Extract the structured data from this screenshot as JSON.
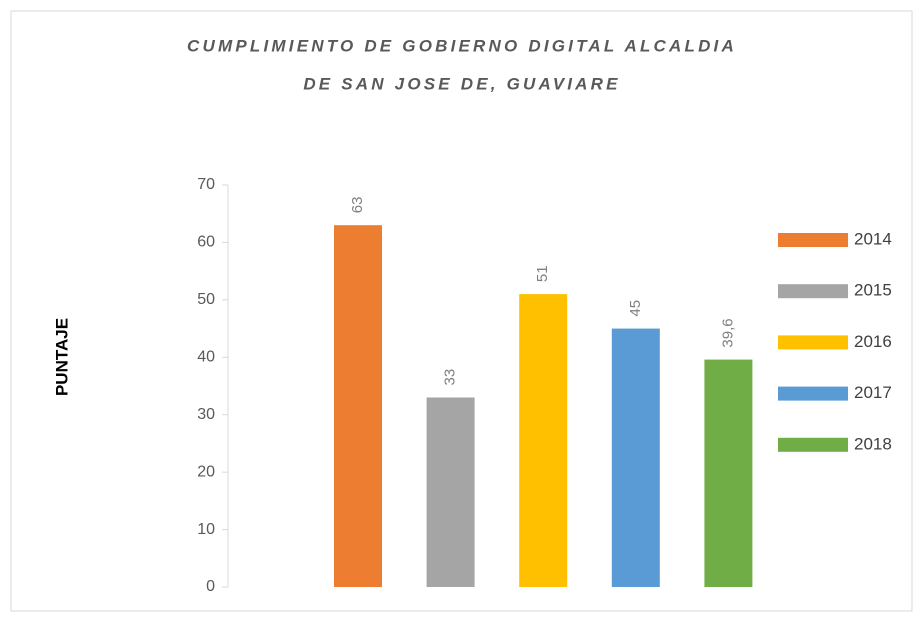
{
  "chart_data": {
    "type": "bar",
    "title": [
      "CUMPLIMIENTO DE GOBIERNO DIGITAL ALCALDIA",
      "DE SAN JOSE DE, GUAVIARE"
    ],
    "y_label": "PUNTAJE",
    "categories": [
      null
    ],
    "series": [
      {
        "name": "2014",
        "color": "#ed7d31",
        "values": [
          63
        ]
      },
      {
        "name": "2015",
        "color": "#a5a5a5",
        "values": [
          33
        ]
      },
      {
        "name": "2016",
        "color": "#ffc000",
        "values": [
          51
        ]
      },
      {
        "name": "2017",
        "color": "#5b9bd5",
        "values": [
          45
        ]
      },
      {
        "name": "2018",
        "color": "#70ad47",
        "values": [
          39.6
        ],
        "value_labels": [
          "39,6"
        ]
      }
    ],
    "ylim": [
      0,
      70
    ],
    "yticks": [
      0,
      10,
      20,
      30,
      40,
      50,
      60,
      70
    ],
    "grid": false,
    "legend": "right"
  }
}
